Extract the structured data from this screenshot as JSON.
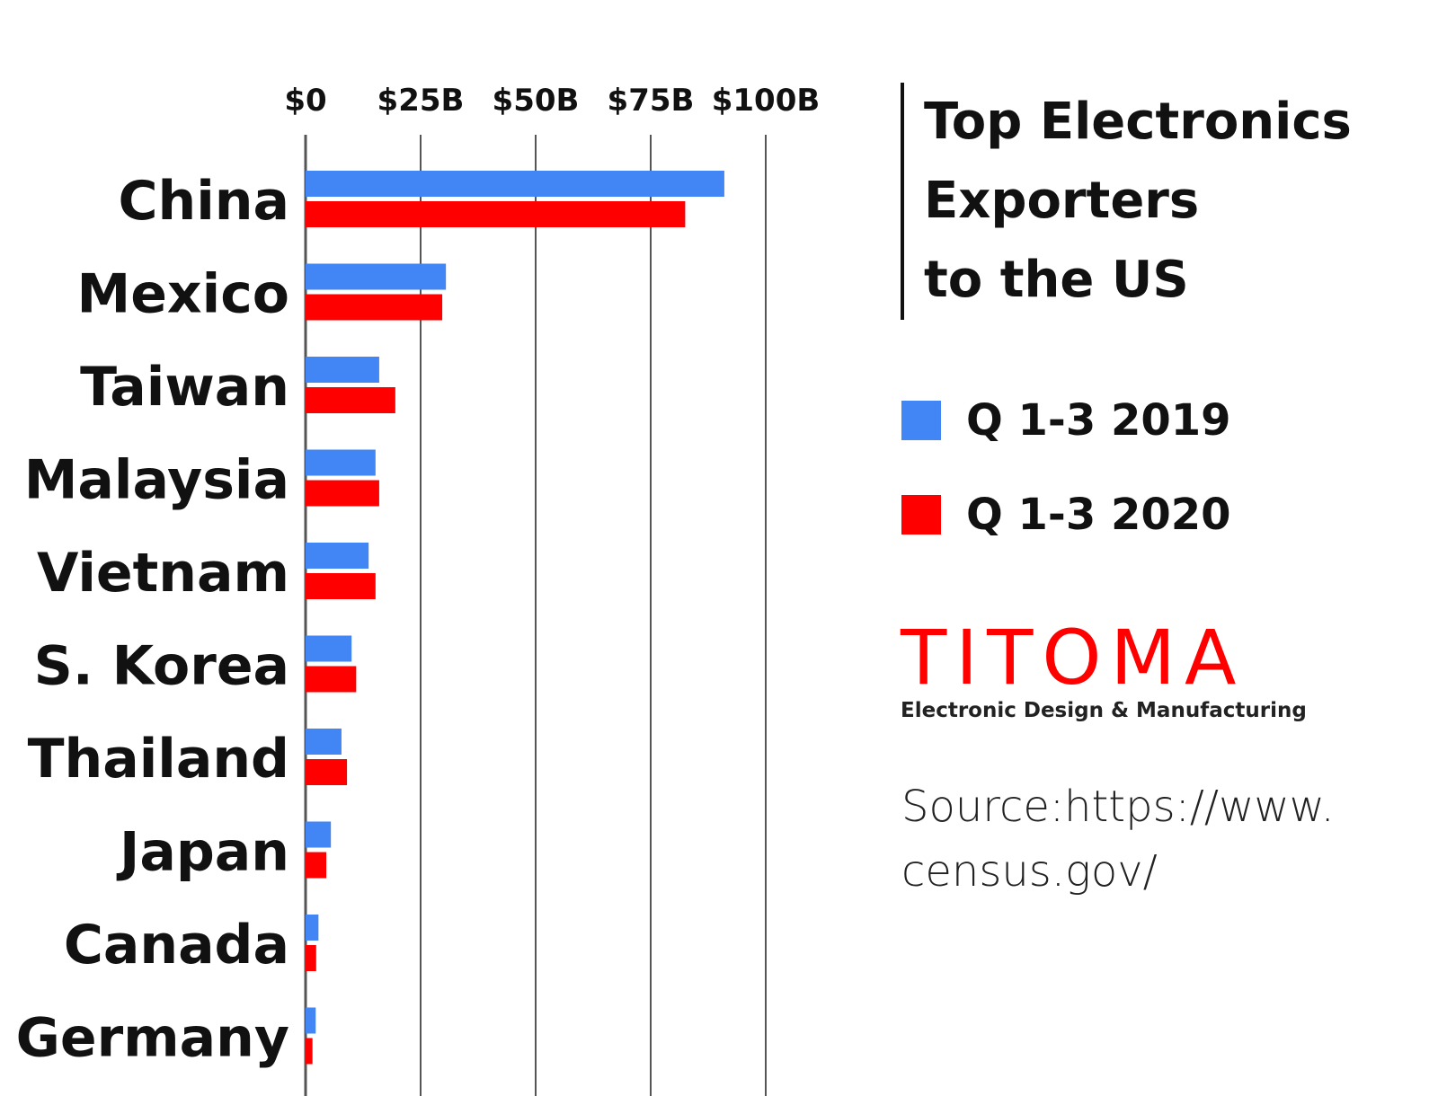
{
  "chart_data": {
    "type": "bar",
    "orientation": "horizontal",
    "categories": [
      "China",
      "Mexico",
      "Taiwan",
      "Malaysia",
      "Vietnam",
      "S. Korea",
      "Thailand",
      "Japan",
      "Canada",
      "Germany"
    ],
    "series": [
      {
        "name": "Q 1-3 2019",
        "color": "#4285f4",
        "values": [
          91,
          30.5,
          16,
          15.2,
          13.7,
          10,
          7.8,
          5.5,
          2.8,
          2.2
        ]
      },
      {
        "name": "Q 1-3 2020",
        "color": "#ff0000",
        "values": [
          82.5,
          29.7,
          19.5,
          16,
          15.2,
          11,
          9,
          4.5,
          2.3,
          1.5
        ]
      }
    ],
    "x_ticks": [
      {
        "value": 0,
        "label": "$0"
      },
      {
        "value": 25,
        "label": "$25B"
      },
      {
        "value": 50,
        "label": "$50B"
      },
      {
        "value": 75,
        "label": "$75B"
      },
      {
        "value": 100,
        "label": "$100B"
      }
    ],
    "xlim": [
      0,
      104
    ],
    "grid": true,
    "legend_position": "right",
    "title_lines": [
      "Top Electronics",
      "Exporters",
      "to the US"
    ]
  },
  "logo": {
    "name": "TITOMA",
    "tagline": "Electronic Design & Manufacturing"
  },
  "source_lines": [
    "Source:https://www.",
    "census.gov/"
  ]
}
